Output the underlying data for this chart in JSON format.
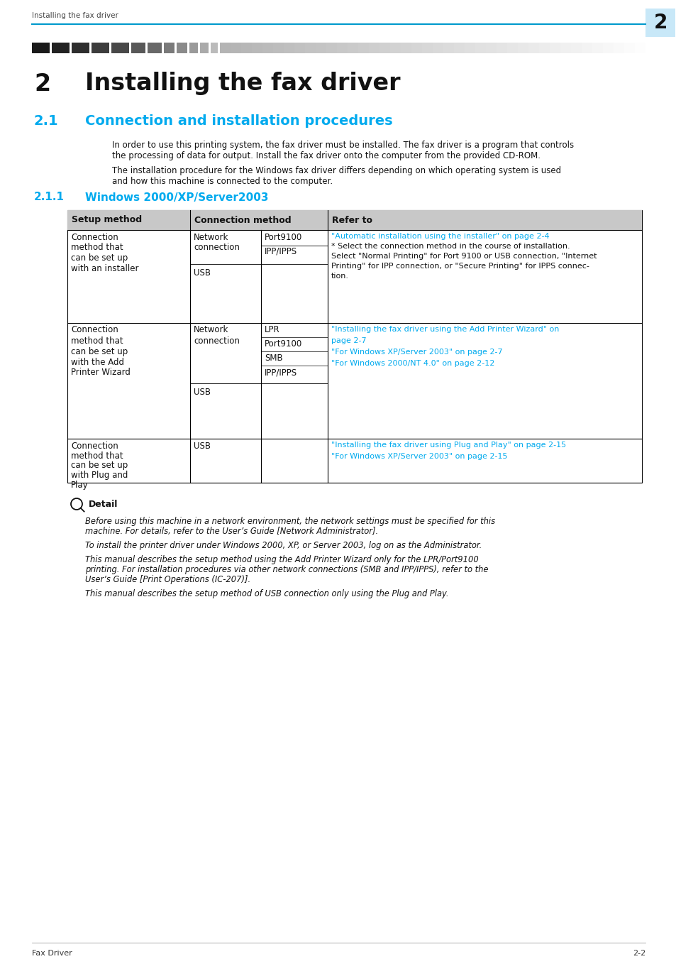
{
  "page_title": "Installing the fax driver",
  "page_num": "2",
  "chapter_num": "2",
  "chapter_title": "Installing the fax driver",
  "section_num": "2.1",
  "section_title": "Connection and installation procedures",
  "section_color": "#00AAEE",
  "subsection_num": "2.1.1",
  "subsection_title": "Windows 2000/XP/Server2003",
  "footer_left": "Fax Driver",
  "footer_right": "2-2",
  "detail_title": "Detail",
  "bg_color": "#FFFFFF",
  "header_line_color": "#0099CC",
  "header_bg_box_color": "#C8E8F8",
  "table_header_bg": "#C8C8C8",
  "link_color": "#00AAEE",
  "body_text_size": 8.5,
  "table_text_size": 8.5,
  "ref_text_size": 8.0
}
